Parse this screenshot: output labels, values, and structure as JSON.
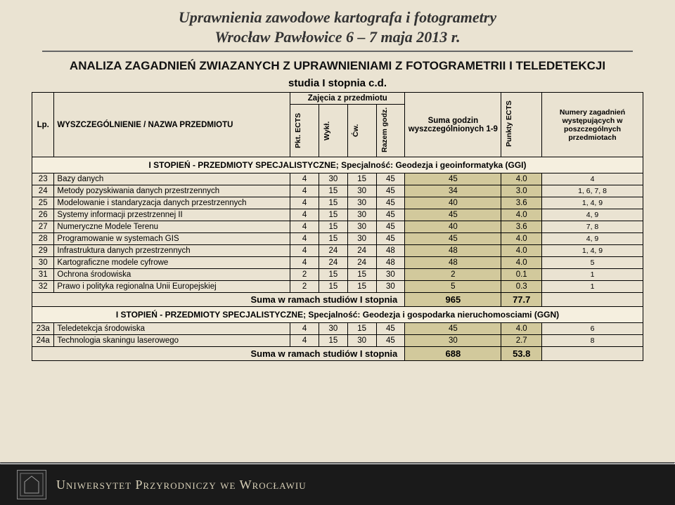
{
  "title_line1": "Uprawnienia zawodowe kartografa i fotogrametry",
  "title_line2": "Wrocław Pawłowice 6 – 7 maja 2013 r.",
  "section_heading": "ANALIZA ZAGADNIEŃ ZWIAZANYCH Z UPRAWNIENIAMI Z FOTOGRAMETRII I TELEDETEKCJI",
  "studia_label": "studia I stopnia c.d.",
  "columns": {
    "lp": "Lp.",
    "name": "WYSZCZEGÓLNIENIE / NAZWA PRZEDMIOTU",
    "group_zajecia": "Zajęcia z przedmiotu",
    "pkt_ects": "Pkt. ECTS",
    "wykl": "Wykł.",
    "cw": "Ćw.",
    "razem": "Razem godz.",
    "suma": "Suma godzin wyszczególnionych 1-9",
    "punkty_ects": "Punkty ECTS",
    "zagadnienia": "Numery zagadnień występujących w poszczególnych przedmiotach"
  },
  "group1_heading": "I STOPIEŃ - PRZEDMIOTY SPECJALISTYCZNE;   Specjalność: Geodezja i geoinformatyka (GGI)",
  "rows1": [
    {
      "lp": "23",
      "name": "Bazy danych",
      "pkt": "4",
      "wykl": "30",
      "cw": "15",
      "razem": "45",
      "suma": "45",
      "ects": "4.0",
      "zag": "4"
    },
    {
      "lp": "24",
      "name": "Metody pozyskiwania danych przestrzennych",
      "pkt": "4",
      "wykl": "15",
      "cw": "30",
      "razem": "45",
      "suma": "34",
      "ects": "3.0",
      "zag": "1, 6, 7, 8"
    },
    {
      "lp": "25",
      "name": "Modelowanie i standaryzacja danych przestrzennych",
      "pkt": "4",
      "wykl": "15",
      "cw": "30",
      "razem": "45",
      "suma": "40",
      "ects": "3.6",
      "zag": "1, 4, 9"
    },
    {
      "lp": "26",
      "name": "Systemy informacji przestrzennej II",
      "pkt": "4",
      "wykl": "15",
      "cw": "30",
      "razem": "45",
      "suma": "45",
      "ects": "4.0",
      "zag": "4, 9"
    },
    {
      "lp": "27",
      "name": "Numeryczne Modele Terenu",
      "pkt": "4",
      "wykl": "15",
      "cw": "30",
      "razem": "45",
      "suma": "40",
      "ects": "3.6",
      "zag": "7, 8"
    },
    {
      "lp": "28",
      "name": "Programowanie w systemach GIS",
      "pkt": "4",
      "wykl": "15",
      "cw": "30",
      "razem": "45",
      "suma": "45",
      "ects": "4.0",
      "zag": "4, 9"
    },
    {
      "lp": "29",
      "name": "Infrastruktura danych przestrzennych",
      "pkt": "4",
      "wykl": "24",
      "cw": "24",
      "razem": "48",
      "suma": "48",
      "ects": "4.0",
      "zag": "1, 4, 9"
    },
    {
      "lp": "30",
      "name": "Kartograficzne modele cyfrowe",
      "pkt": "4",
      "wykl": "24",
      "cw": "24",
      "razem": "48",
      "suma": "48",
      "ects": "4.0",
      "zag": "5"
    },
    {
      "lp": "31",
      "name": "Ochrona środowiska",
      "pkt": "2",
      "wykl": "15",
      "cw": "15",
      "razem": "30",
      "suma": "2",
      "ects": "0.1",
      "zag": "1"
    },
    {
      "lp": "32",
      "name": "Prawo i polityka regionalna Unii Europejskiej",
      "pkt": "2",
      "wykl": "15",
      "cw": "15",
      "razem": "30",
      "suma": "5",
      "ects": "0.3",
      "zag": "1"
    }
  ],
  "sum1": {
    "label": "Suma w ramach studiów I stopnia",
    "suma": "965",
    "ects": "77.7"
  },
  "group2_heading": "I STOPIEŃ - PRZEDMIOTY SPECJALISTYCZNE; Specjalność: Geodezja i gospodarka nieruchomosciami (GGN)",
  "rows2": [
    {
      "lp": "23a",
      "name": "Teledetekcja środowiska",
      "pkt": "4",
      "wykl": "30",
      "cw": "15",
      "razem": "45",
      "suma": "45",
      "ects": "4.0",
      "zag": "6"
    },
    {
      "lp": "24a",
      "name": "Technologia skaningu laserowego",
      "pkt": "4",
      "wykl": "15",
      "cw": "30",
      "razem": "45",
      "suma": "30",
      "ects": "2.7",
      "zag": "8"
    }
  ],
  "sum2": {
    "label": "Suma w ramach studiów I stopnia",
    "suma": "688",
    "ects": "53.8"
  },
  "footer_text": "Uniwersytet Przyrodniczy we Wrocławiu",
  "colors": {
    "page_bg": "#eae3d2",
    "highlight": "#d2c99c",
    "footer_bg": "#1a1a1a",
    "footer_text": "#d8d0b8",
    "border": "#000000"
  }
}
